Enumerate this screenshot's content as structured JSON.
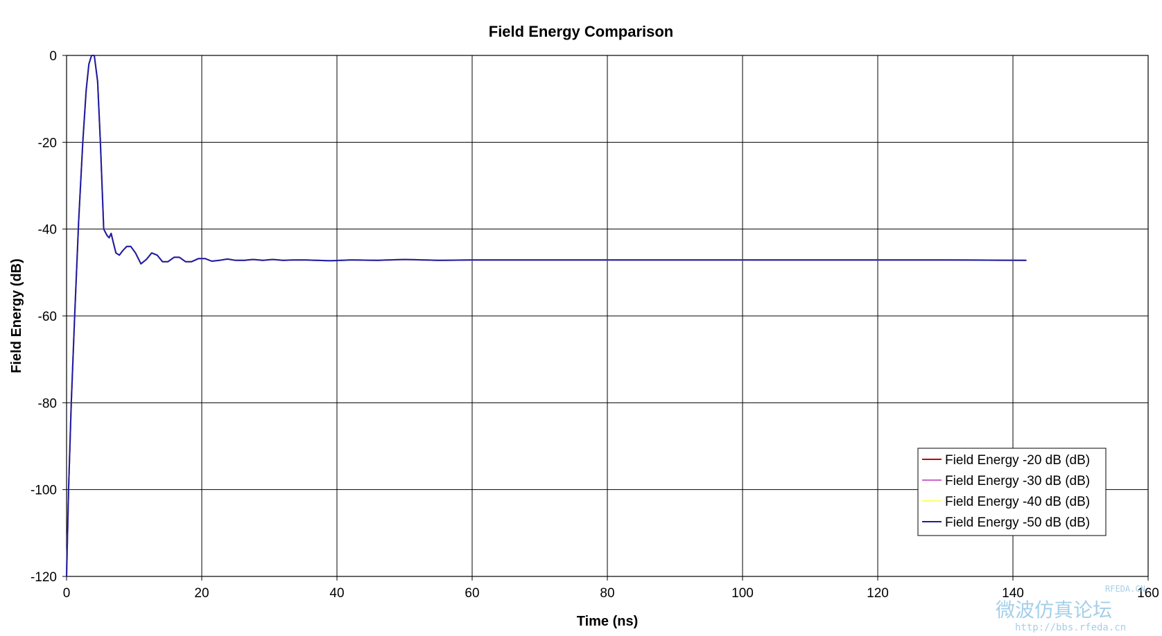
{
  "chart_data": {
    "type": "line",
    "title": "Field Energy Comparison",
    "xlabel": "Time (ns)",
    "ylabel": "Field Energy (dB)",
    "xlim": [
      0,
      160
    ],
    "ylim": [
      -120,
      0
    ],
    "xticks": [
      0,
      20,
      40,
      60,
      80,
      100,
      120,
      140,
      160
    ],
    "yticks": [
      0,
      -20,
      -40,
      -60,
      -80,
      -100,
      -120
    ],
    "grid": true,
    "legend_position": "bottom-right",
    "series": [
      {
        "name": "Field Energy -20 dB (dB)",
        "color": "#c00000",
        "x": [
          0,
          0.3,
          0.7,
          1.2,
          1.8,
          2.4,
          2.9,
          3.3,
          3.7,
          4.1,
          4.6,
          5.0,
          5.5,
          6.0,
          6.3,
          6.6,
          6.9,
          7.3,
          7.8,
          8.3,
          8.9,
          9.5,
          10.2,
          11.0,
          11.8,
          12.6,
          13.4,
          14.2,
          15.0,
          15.9,
          16.7,
          17.6,
          18.5,
          19.5,
          20.5,
          21.5,
          22.6,
          23.8,
          25.0,
          26.3,
          27.6,
          29.0,
          30.5,
          32.0,
          33.6,
          35.3,
          37.0,
          39.0,
          42.0,
          46.0,
          50.0,
          55.0,
          60.0,
          70.0,
          80.0,
          90.0,
          100.0,
          110.0,
          120.0,
          130.0,
          142.0
        ],
        "y": [
          -120,
          -100,
          -80,
          -60,
          -38,
          -20,
          -8,
          -2,
          0,
          0,
          -6,
          -20,
          -40,
          -41.5,
          -42,
          -41,
          -43,
          -45.5,
          -46,
          -45,
          -44,
          -44,
          -45.5,
          -48,
          -47,
          -45.5,
          -46,
          -47.5,
          -47.5,
          -46.5,
          -46.5,
          -47.5,
          -47.5,
          -46.8,
          -46.8,
          -47.4,
          -47.2,
          -46.9,
          -47.2,
          -47.2,
          -47,
          -47.2,
          -47,
          -47.2,
          -47.1,
          -47.1,
          -47.2,
          -47.3,
          -47.1,
          -47.2,
          -47.0,
          -47.2,
          -47.1,
          -47.1,
          -47.1,
          -47.1,
          -47.1,
          -47.1,
          -47.1,
          -47.1,
          -47.2
        ]
      },
      {
        "name": "Field Energy -30 dB (dB)",
        "color": "#cc66cc",
        "x": [
          0,
          0.3,
          0.7,
          1.2,
          1.8,
          2.4,
          2.9,
          3.3,
          3.7,
          4.1,
          4.6,
          5.0,
          5.5,
          6.0,
          6.3,
          6.6,
          6.9,
          7.3,
          7.8,
          8.3,
          8.9,
          9.5,
          10.2,
          11.0,
          11.8,
          12.6,
          13.4,
          14.2,
          15.0,
          15.9,
          16.7,
          17.6,
          18.5,
          19.5,
          20.5,
          21.5,
          22.6,
          23.8,
          25.0,
          26.3,
          27.6,
          29.0,
          30.5,
          32.0,
          33.6,
          35.3,
          37.0,
          39.0,
          42.0,
          46.0,
          50.0,
          55.0,
          60.0,
          70.0,
          80.0,
          90.0,
          100.0,
          110.0,
          120.0,
          130.0,
          142.0
        ],
        "y": [
          -120,
          -100,
          -80,
          -60,
          -38,
          -20,
          -8,
          -2,
          0,
          0,
          -6,
          -20,
          -40,
          -41.5,
          -42,
          -41,
          -43,
          -45.5,
          -46,
          -45,
          -44,
          -44,
          -45.5,
          -48,
          -47,
          -45.5,
          -46,
          -47.5,
          -47.5,
          -46.5,
          -46.5,
          -47.5,
          -47.5,
          -46.8,
          -46.8,
          -47.4,
          -47.2,
          -46.9,
          -47.2,
          -47.2,
          -47,
          -47.2,
          -47,
          -47.2,
          -47.1,
          -47.1,
          -47.2,
          -47.3,
          -47.1,
          -47.2,
          -47.0,
          -47.2,
          -47.1,
          -47.1,
          -47.1,
          -47.1,
          -47.1,
          -47.1,
          -47.1,
          -47.1,
          -47.2
        ]
      },
      {
        "name": "Field Energy -40 dB (dB)",
        "color": "#ffff66",
        "x": [
          0,
          0.3,
          0.7,
          1.2,
          1.8,
          2.4,
          2.9,
          3.3,
          3.7,
          4.1,
          4.6,
          5.0,
          5.5,
          6.0,
          6.3,
          6.6,
          6.9,
          7.3,
          7.8,
          8.3,
          8.9,
          9.5,
          10.2,
          11.0,
          11.8,
          12.6,
          13.4,
          14.2,
          15.0,
          15.9,
          16.7,
          17.6,
          18.5,
          19.5,
          20.5,
          21.5,
          22.6,
          23.8,
          25.0,
          26.3,
          27.6,
          29.0,
          30.5,
          32.0,
          33.6,
          35.3,
          37.0,
          39.0,
          42.0,
          46.0,
          50.0,
          55.0,
          60.0,
          70.0,
          80.0,
          90.0,
          100.0,
          110.0,
          120.0,
          130.0,
          142.0
        ],
        "y": [
          -120,
          -100,
          -80,
          -60,
          -38,
          -20,
          -8,
          -2,
          0,
          0,
          -6,
          -20,
          -40,
          -41.5,
          -42,
          -41,
          -43,
          -45.5,
          -46,
          -45,
          -44,
          -44,
          -45.5,
          -48,
          -47,
          -45.5,
          -46,
          -47.5,
          -47.5,
          -46.5,
          -46.5,
          -47.5,
          -47.5,
          -46.8,
          -46.8,
          -47.4,
          -47.2,
          -46.9,
          -47.2,
          -47.2,
          -47,
          -47.2,
          -47,
          -47.2,
          -47.1,
          -47.1,
          -47.2,
          -47.3,
          -47.1,
          -47.2,
          -47.0,
          -47.2,
          -47.1,
          -47.1,
          -47.1,
          -47.1,
          -47.1,
          -47.1,
          -47.1,
          -47.1,
          -47.2
        ]
      },
      {
        "name": "Field Energy -50 dB (dB)",
        "color": "#1a1aa8",
        "x": [
          0,
          0.3,
          0.7,
          1.2,
          1.8,
          2.4,
          2.9,
          3.3,
          3.7,
          4.1,
          4.6,
          5.0,
          5.5,
          6.0,
          6.3,
          6.6,
          6.9,
          7.3,
          7.8,
          8.3,
          8.9,
          9.5,
          10.2,
          11.0,
          11.8,
          12.6,
          13.4,
          14.2,
          15.0,
          15.9,
          16.7,
          17.6,
          18.5,
          19.5,
          20.5,
          21.5,
          22.6,
          23.8,
          25.0,
          26.3,
          27.6,
          29.0,
          30.5,
          32.0,
          33.6,
          35.3,
          37.0,
          39.0,
          42.0,
          46.0,
          50.0,
          55.0,
          60.0,
          70.0,
          80.0,
          90.0,
          100.0,
          110.0,
          120.0,
          130.0,
          142.0
        ],
        "y": [
          -120,
          -100,
          -80,
          -60,
          -38,
          -20,
          -8,
          -2,
          0,
          0,
          -6,
          -20,
          -40,
          -41.5,
          -42,
          -41,
          -43,
          -45.5,
          -46,
          -45,
          -44,
          -44,
          -45.5,
          -48,
          -47,
          -45.5,
          -46,
          -47.5,
          -47.5,
          -46.5,
          -46.5,
          -47.5,
          -47.5,
          -46.8,
          -46.8,
          -47.4,
          -47.2,
          -46.9,
          -47.2,
          -47.2,
          -47,
          -47.2,
          -47,
          -47.2,
          -47.1,
          -47.1,
          -47.2,
          -47.3,
          -47.1,
          -47.2,
          -47.0,
          -47.2,
          -47.1,
          -47.1,
          -47.1,
          -47.1,
          -47.1,
          -47.1,
          -47.1,
          -47.1,
          -47.2
        ]
      }
    ]
  },
  "watermark": {
    "brand": "RFEDA.CN",
    "chinese": "微波仿真论坛",
    "url": "http://bbs.rfeda.cn"
  }
}
